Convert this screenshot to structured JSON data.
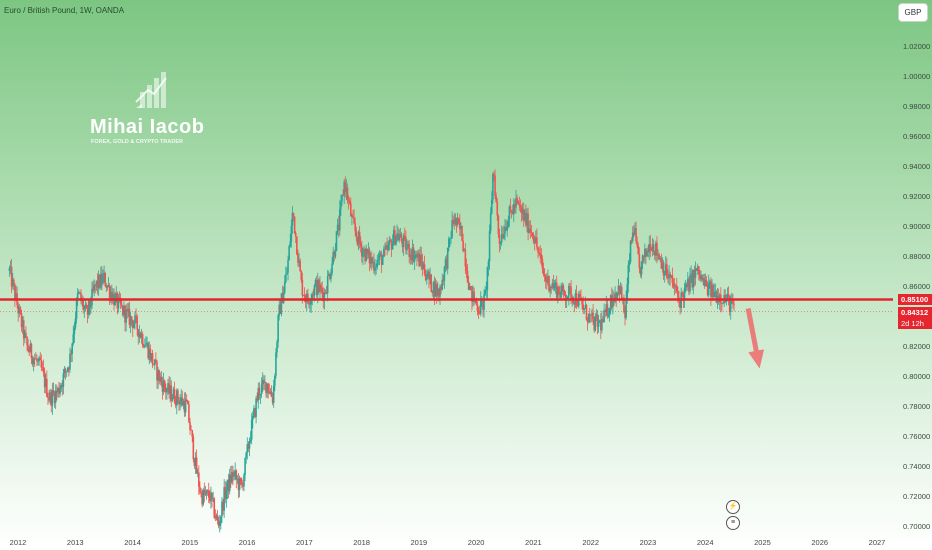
{
  "header": {
    "symbol_title": "Euro / British Pound, 1W, OANDA",
    "currency_button": "GBP"
  },
  "watermark": {
    "name": "Mihai Iacob",
    "subtitle": "FOREX, GOLD & CRYPTO TRADER"
  },
  "price_tags": {
    "level": "0.85100",
    "last": "0.84312",
    "countdown": "2d 12h"
  },
  "events": {
    "icon1": "⚡",
    "icon2": "≡"
  },
  "colors": {
    "up": "#26a69a",
    "down": "#ef5350",
    "level": "#e5262e",
    "bg_top": "#7cc682",
    "bg_bottom": "#ffffff",
    "axis_text": "#3a4a3e"
  },
  "chart_data": {
    "type": "candlestick",
    "ylim": [
      0.695,
      1.035
    ],
    "xlim": [
      2011.8,
      2027.3
    ],
    "y_ticks": [
      "0.70000",
      "0.72000",
      "0.74000",
      "0.76000",
      "0.78000",
      "0.80000",
      "0.82000",
      "0.84000",
      "0.86000",
      "0.88000",
      "0.90000",
      "0.92000",
      "0.94000",
      "0.96000",
      "0.98000",
      "1.00000",
      "1.02000"
    ],
    "x_ticks": [
      "2012",
      "2013",
      "2014",
      "2015",
      "2016",
      "2017",
      "2018",
      "2019",
      "2020",
      "2021",
      "2022",
      "2023",
      "2024",
      "2025",
      "2026",
      "2027"
    ],
    "horizontal_level": 0.851,
    "last_price": 0.84312,
    "projection_arrow": {
      "from": [
        2024.75,
        0.845
      ],
      "to": [
        2024.95,
        0.805
      ]
    },
    "price_path": [
      [
        2011.85,
        0.87
      ],
      [
        2012.0,
        0.845
      ],
      [
        2012.15,
        0.82
      ],
      [
        2012.4,
        0.805
      ],
      [
        2012.55,
        0.785
      ],
      [
        2012.7,
        0.79
      ],
      [
        2012.9,
        0.81
      ],
      [
        2013.05,
        0.855
      ],
      [
        2013.2,
        0.84
      ],
      [
        2013.35,
        0.86
      ],
      [
        2013.5,
        0.865
      ],
      [
        2013.7,
        0.85
      ],
      [
        2013.9,
        0.84
      ],
      [
        2014.05,
        0.835
      ],
      [
        2014.25,
        0.82
      ],
      [
        2014.45,
        0.8
      ],
      [
        2014.6,
        0.79
      ],
      [
        2014.8,
        0.785
      ],
      [
        2014.95,
        0.78
      ],
      [
        2015.1,
        0.74
      ],
      [
        2015.2,
        0.72
      ],
      [
        2015.35,
        0.72
      ],
      [
        2015.5,
        0.7
      ],
      [
        2015.6,
        0.72
      ],
      [
        2015.75,
        0.735
      ],
      [
        2015.9,
        0.725
      ],
      [
        2016.05,
        0.76
      ],
      [
        2016.2,
        0.79
      ],
      [
        2016.35,
        0.795
      ],
      [
        2016.45,
        0.785
      ],
      [
        2016.55,
        0.84
      ],
      [
        2016.7,
        0.87
      ],
      [
        2016.8,
        0.91
      ],
      [
        2016.95,
        0.86
      ],
      [
        2017.05,
        0.85
      ],
      [
        2017.2,
        0.86
      ],
      [
        2017.35,
        0.855
      ],
      [
        2017.45,
        0.87
      ],
      [
        2017.6,
        0.9
      ],
      [
        2017.7,
        0.93
      ],
      [
        2017.85,
        0.9
      ],
      [
        2018.0,
        0.885
      ],
      [
        2018.2,
        0.875
      ],
      [
        2018.4,
        0.88
      ],
      [
        2018.6,
        0.895
      ],
      [
        2018.8,
        0.885
      ],
      [
        2018.95,
        0.88
      ],
      [
        2019.05,
        0.875
      ],
      [
        2019.2,
        0.862
      ],
      [
        2019.35,
        0.855
      ],
      [
        2019.5,
        0.88
      ],
      [
        2019.6,
        0.905
      ],
      [
        2019.75,
        0.895
      ],
      [
        2019.9,
        0.855
      ],
      [
        2020.05,
        0.845
      ],
      [
        2020.15,
        0.85
      ],
      [
        2020.22,
        0.88
      ],
      [
        2020.3,
        0.94
      ],
      [
        2020.4,
        0.89
      ],
      [
        2020.55,
        0.905
      ],
      [
        2020.7,
        0.915
      ],
      [
        2020.85,
        0.905
      ],
      [
        2021.0,
        0.895
      ],
      [
        2021.1,
        0.88
      ],
      [
        2021.2,
        0.865
      ],
      [
        2021.35,
        0.86
      ],
      [
        2021.5,
        0.855
      ],
      [
        2021.65,
        0.855
      ],
      [
        2021.8,
        0.85
      ],
      [
        2021.95,
        0.84
      ],
      [
        2022.05,
        0.835
      ],
      [
        2022.2,
        0.835
      ],
      [
        2022.35,
        0.85
      ],
      [
        2022.5,
        0.86
      ],
      [
        2022.6,
        0.84
      ],
      [
        2022.68,
        0.88
      ],
      [
        2022.75,
        0.9
      ],
      [
        2022.85,
        0.87
      ],
      [
        2022.95,
        0.88
      ],
      [
        2023.05,
        0.89
      ],
      [
        2023.2,
        0.88
      ],
      [
        2023.3,
        0.87
      ],
      [
        2023.45,
        0.86
      ],
      [
        2023.55,
        0.85
      ],
      [
        2023.7,
        0.86
      ],
      [
        2023.85,
        0.87
      ],
      [
        2024.0,
        0.86
      ],
      [
        2024.15,
        0.855
      ],
      [
        2024.3,
        0.853
      ],
      [
        2024.45,
        0.848
      ],
      [
        2024.52,
        0.843
      ]
    ]
  }
}
